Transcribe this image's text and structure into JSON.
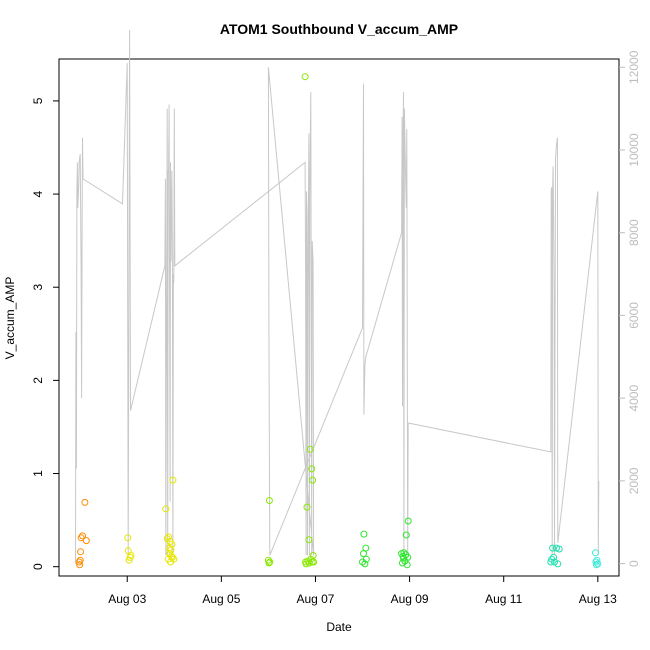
{
  "chart_data": {
    "type": "scatter",
    "title": "ATOM1 Southbound V_accum_AMP",
    "xlabel": "Date",
    "ylabel": "V_accum_AMP",
    "xlim": [
      1.55,
      13.45
    ],
    "ylim": [
      -0.1,
      5.45
    ],
    "y2lim": [
      -300,
      12200
    ],
    "x_ticks": [
      {
        "value": 3,
        "label": "Aug 03"
      },
      {
        "value": 5,
        "label": "Aug 05"
      },
      {
        "value": 7,
        "label": "Aug 07"
      },
      {
        "value": 9,
        "label": "Aug 09"
      },
      {
        "value": 11,
        "label": "Aug 11"
      },
      {
        "value": 13,
        "label": "Aug 13"
      }
    ],
    "y_ticks": [
      {
        "value": 0,
        "label": "0"
      },
      {
        "value": 1,
        "label": "1"
      },
      {
        "value": 2,
        "label": "2"
      },
      {
        "value": 3,
        "label": "3"
      },
      {
        "value": 4,
        "label": "4"
      },
      {
        "value": 5,
        "label": "5"
      }
    ],
    "y2_ticks": [
      {
        "value": 0,
        "label": "0"
      },
      {
        "value": 2000,
        "label": "2000"
      },
      {
        "value": 4000,
        "label": "4000"
      },
      {
        "value": 6000,
        "label": "6000"
      },
      {
        "value": 8000,
        "label": "8000"
      },
      {
        "value": 10000,
        "label": "10000"
      },
      {
        "value": 12000,
        "label": "12000"
      }
    ],
    "grid": false,
    "colors": {
      "line": "#c8c8c8",
      "right_axis": "#bdbdbd"
    },
    "points": [
      {
        "x": 1.98,
        "y": 0.05,
        "color": "#ff8c00"
      },
      {
        "x": 1.99,
        "y": 0.02,
        "color": "#ff8c00"
      },
      {
        "x": 2.0,
        "y": 0.07,
        "color": "#ff8c00"
      },
      {
        "x": 2.01,
        "y": 0.16,
        "color": "#ff8c00"
      },
      {
        "x": 2.02,
        "y": 0.31,
        "color": "#ff8c00"
      },
      {
        "x": 2.05,
        "y": 0.33,
        "color": "#ff8c00"
      },
      {
        "x": 2.1,
        "y": 0.69,
        "color": "#ff8c00"
      },
      {
        "x": 2.13,
        "y": 0.28,
        "color": "#ff8c00"
      },
      {
        "x": 3.01,
        "y": 0.31,
        "color": "#e6e600"
      },
      {
        "x": 3.02,
        "y": 0.17,
        "color": "#e6e600"
      },
      {
        "x": 3.04,
        "y": 0.07,
        "color": "#e6e600"
      },
      {
        "x": 3.06,
        "y": 0.1,
        "color": "#e6e600"
      },
      {
        "x": 3.08,
        "y": 0.12,
        "color": "#e6e600"
      },
      {
        "x": 3.82,
        "y": 0.62,
        "color": "#e6e600"
      },
      {
        "x": 3.85,
        "y": 0.3,
        "color": "#e6e600"
      },
      {
        "x": 3.87,
        "y": 0.08,
        "color": "#e6e600"
      },
      {
        "x": 3.88,
        "y": 0.32,
        "color": "#e6e600"
      },
      {
        "x": 3.89,
        "y": 0.2,
        "color": "#e6e600"
      },
      {
        "x": 3.9,
        "y": 0.14,
        "color": "#e6e600"
      },
      {
        "x": 3.91,
        "y": 0.27,
        "color": "#e6e600"
      },
      {
        "x": 3.92,
        "y": 0.05,
        "color": "#e6e600"
      },
      {
        "x": 3.93,
        "y": 0.18,
        "color": "#e6e600"
      },
      {
        "x": 3.94,
        "y": 0.11,
        "color": "#e6e600"
      },
      {
        "x": 3.95,
        "y": 0.24,
        "color": "#e6e600"
      },
      {
        "x": 3.96,
        "y": 0.1,
        "color": "#e6e600"
      },
      {
        "x": 3.97,
        "y": 0.93,
        "color": "#e6e600"
      },
      {
        "x": 3.99,
        "y": 0.08,
        "color": "#e6e600"
      },
      {
        "x": 6.0,
        "y": 0.07,
        "color": "#88e800"
      },
      {
        "x": 6.01,
        "y": 0.04,
        "color": "#88e800"
      },
      {
        "x": 6.02,
        "y": 0.71,
        "color": "#88e800"
      },
      {
        "x": 6.03,
        "y": 0.05,
        "color": "#88e800"
      },
      {
        "x": 6.78,
        "y": 5.26,
        "color": "#88e800"
      },
      {
        "x": 6.79,
        "y": 0.05,
        "color": "#88e800"
      },
      {
        "x": 6.8,
        "y": 0.03,
        "color": "#88e800"
      },
      {
        "x": 6.82,
        "y": 0.64,
        "color": "#88e800"
      },
      {
        "x": 6.84,
        "y": 0.06,
        "color": "#88e800"
      },
      {
        "x": 6.86,
        "y": 0.29,
        "color": "#88e800"
      },
      {
        "x": 6.87,
        "y": 0.04,
        "color": "#88e800"
      },
      {
        "x": 6.89,
        "y": 1.26,
        "color": "#88e800"
      },
      {
        "x": 6.9,
        "y": 0.08,
        "color": "#88e800"
      },
      {
        "x": 6.92,
        "y": 1.05,
        "color": "#88e800"
      },
      {
        "x": 6.93,
        "y": 0.05,
        "color": "#88e800"
      },
      {
        "x": 6.94,
        "y": 0.93,
        "color": "#88e800"
      },
      {
        "x": 6.95,
        "y": 0.12,
        "color": "#88e800"
      },
      {
        "x": 6.96,
        "y": 0.05,
        "color": "#88e800"
      },
      {
        "x": 8.0,
        "y": 0.05,
        "color": "#2ee62e"
      },
      {
        "x": 8.02,
        "y": 0.14,
        "color": "#2ee62e"
      },
      {
        "x": 8.03,
        "y": 0.35,
        "color": "#2ee62e"
      },
      {
        "x": 8.05,
        "y": 0.03,
        "color": "#2ee62e"
      },
      {
        "x": 8.07,
        "y": 0.2,
        "color": "#2ee62e"
      },
      {
        "x": 8.08,
        "y": 0.08,
        "color": "#2ee62e"
      },
      {
        "x": 8.83,
        "y": 0.14,
        "color": "#2ee62e"
      },
      {
        "x": 8.85,
        "y": 0.04,
        "color": "#2ee62e"
      },
      {
        "x": 8.86,
        "y": 0.11,
        "color": "#2ee62e"
      },
      {
        "x": 8.87,
        "y": 0.09,
        "color": "#2ee62e"
      },
      {
        "x": 8.88,
        "y": 0.15,
        "color": "#2ee62e"
      },
      {
        "x": 8.9,
        "y": 0.06,
        "color": "#2ee62e"
      },
      {
        "x": 8.92,
        "y": 0.13,
        "color": "#2ee62e"
      },
      {
        "x": 8.93,
        "y": 0.34,
        "color": "#2ee62e"
      },
      {
        "x": 8.95,
        "y": 0.02,
        "color": "#2ee62e"
      },
      {
        "x": 8.96,
        "y": 0.1,
        "color": "#2ee62e"
      },
      {
        "x": 8.97,
        "y": 0.49,
        "color": "#2ee62e"
      },
      {
        "x": 12.0,
        "y": 0.05,
        "color": "#22e0b0"
      },
      {
        "x": 12.02,
        "y": 0.08,
        "color": "#22e0b0"
      },
      {
        "x": 12.04,
        "y": 0.2,
        "color": "#22e0b0"
      },
      {
        "x": 12.06,
        "y": 0.1,
        "color": "#22e0b0"
      },
      {
        "x": 12.08,
        "y": 0.05,
        "color": "#22e0b0"
      },
      {
        "x": 12.12,
        "y": 0.2,
        "color": "#22e0b0"
      },
      {
        "x": 12.15,
        "y": 0.03,
        "color": "#22e0b0"
      },
      {
        "x": 12.18,
        "y": 0.19,
        "color": "#22e0b0"
      },
      {
        "x": 12.95,
        "y": 0.15,
        "color": "#40e8d8"
      },
      {
        "x": 12.96,
        "y": 0.05,
        "color": "#40e8d8"
      },
      {
        "x": 12.97,
        "y": 0.02,
        "color": "#40e8d8"
      },
      {
        "x": 12.98,
        "y": 0.07,
        "color": "#40e8d8"
      },
      {
        "x": 13.0,
        "y": 0.03,
        "color": "#40e8d8"
      }
    ],
    "line_series": {
      "axis": "right",
      "points": [
        [
          1.9,
          0
        ],
        [
          1.91,
          5600
        ],
        [
          1.92,
          2300
        ],
        [
          1.93,
          9000
        ],
        [
          1.94,
          9700
        ],
        [
          1.95,
          8600
        ],
        [
          1.97,
          9200
        ],
        [
          1.98,
          9700
        ],
        [
          2.0,
          9900
        ],
        [
          2.02,
          7200
        ],
        [
          2.03,
          4000
        ],
        [
          2.04,
          8200
        ],
        [
          2.05,
          10300
        ],
        [
          2.06,
          9300
        ],
        [
          2.9,
          8700
        ],
        [
          3.0,
          12100
        ],
        [
          3.02,
          200
        ],
        [
          3.05,
          12900
        ],
        [
          3.07,
          3700
        ],
        [
          3.8,
          7200
        ],
        [
          3.81,
          9300
        ],
        [
          3.82,
          200
        ],
        [
          3.85,
          11000
        ],
        [
          3.86,
          200
        ],
        [
          3.87,
          9500
        ],
        [
          3.88,
          9500
        ],
        [
          3.89,
          11100
        ],
        [
          3.91,
          1500
        ],
        [
          3.92,
          9700
        ],
        [
          3.93,
          7300
        ],
        [
          3.95,
          9500
        ],
        [
          3.96,
          7500
        ],
        [
          3.97,
          200
        ],
        [
          3.98,
          7000
        ],
        [
          3.99,
          6800
        ],
        [
          4.0,
          11000
        ],
        [
          4.01,
          7200
        ],
        [
          6.78,
          9700
        ],
        [
          6.79,
          7000
        ],
        [
          6.8,
          200
        ],
        [
          6.81,
          9000
        ],
        [
          6.82,
          8500
        ],
        [
          6.83,
          200
        ],
        [
          6.84,
          6500
        ],
        [
          6.85,
          8500
        ],
        [
          6.86,
          10400
        ],
        [
          6.87,
          200
        ],
        [
          6.88,
          8900
        ],
        [
          6.9,
          11400
        ],
        [
          6.92,
          200
        ],
        [
          6.93,
          7800
        ],
        [
          6.95,
          7300
        ],
        [
          6.96,
          200
        ],
        [
          6.0,
          12000
        ],
        [
          6.01,
          5800
        ],
        [
          6.03,
          200
        ],
        [
          8.0,
          5700
        ],
        [
          8.02,
          11600
        ],
        [
          8.03,
          3600
        ],
        [
          8.05,
          4800
        ],
        [
          8.07,
          5000
        ],
        [
          8.83,
          8000
        ],
        [
          8.84,
          10800
        ],
        [
          8.85,
          3800
        ],
        [
          8.86,
          10200
        ],
        [
          8.87,
          11400
        ],
        [
          8.88,
          200
        ],
        [
          8.89,
          11000
        ],
        [
          8.91,
          9600
        ],
        [
          8.93,
          8600
        ],
        [
          8.94,
          10500
        ],
        [
          8.96,
          200
        ],
        [
          8.97,
          3400
        ],
        [
          12.0,
          2700
        ],
        [
          12.01,
          9000
        ],
        [
          12.02,
          9100
        ],
        [
          12.03,
          200
        ],
        [
          12.04,
          9000
        ],
        [
          12.05,
          9600
        ],
        [
          12.07,
          6800
        ],
        [
          12.08,
          200
        ],
        [
          12.1,
          9800
        ],
        [
          12.12,
          10100
        ],
        [
          12.14,
          10300
        ],
        [
          12.15,
          500
        ],
        [
          13.0,
          9000
        ],
        [
          13.01,
          200
        ],
        [
          13.02,
          2000
        ]
      ]
    }
  }
}
